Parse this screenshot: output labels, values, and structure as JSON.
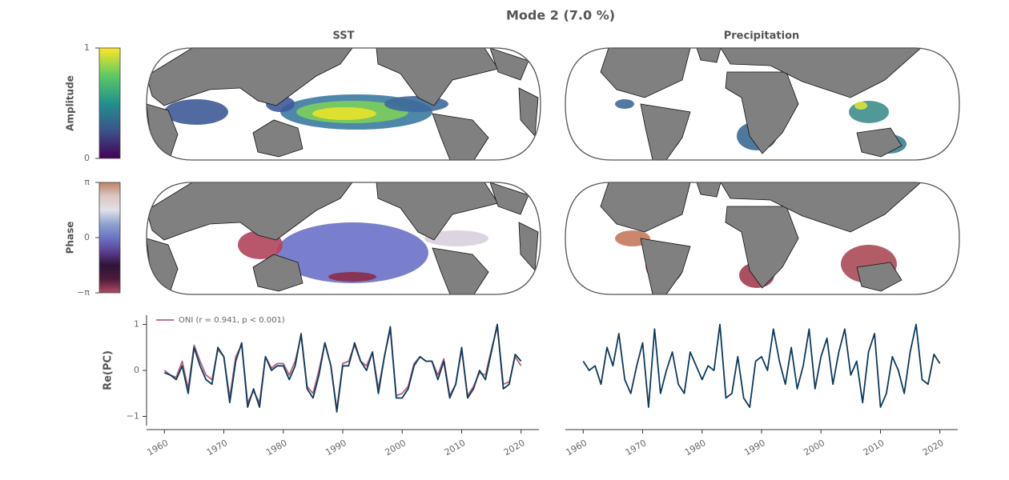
{
  "figure": {
    "title": "Mode 2 (7.0 %)",
    "column_titles": [
      "SST",
      "Precipitation"
    ]
  },
  "colorbars": [
    {
      "label": "Amplitude",
      "lim": [
        0,
        1
      ],
      "ticks": [
        0,
        1
      ],
      "colors": [
        "#440154",
        "#3b528b",
        "#21918c",
        "#5ec962",
        "#fde725"
      ]
    },
    {
      "label": "Phase",
      "lim": [
        -3.14159,
        3.14159
      ],
      "ticks": [
        {
          "value": -3.14159,
          "label": "−π"
        },
        0,
        {
          "value": 3.14159,
          "label": "π"
        }
      ],
      "colors": [
        "#b04a62",
        "#4c1b3a",
        "#2f1436",
        "#5b3f94",
        "#6a76c2",
        "#8fa3cf",
        "#e2e0e8",
        "#d9c8c3",
        "#c08267"
      ]
    }
  ],
  "chart_data": [
    {
      "type": "line",
      "ylabel": "Re(PC)",
      "x": [
        1960,
        1961,
        1962,
        1963,
        1964,
        1965,
        1966,
        1967,
        1968,
        1969,
        1970,
        1971,
        1972,
        1973,
        1974,
        1975,
        1976,
        1977,
        1978,
        1979,
        1980,
        1981,
        1982,
        1983,
        1984,
        1985,
        1986,
        1987,
        1988,
        1989,
        1990,
        1991,
        1992,
        1993,
        1994,
        1995,
        1996,
        1997,
        1998,
        1999,
        2000,
        2001,
        2002,
        2003,
        2004,
        2005,
        2006,
        2007,
        2008,
        2009,
        2010,
        2011,
        2012,
        2013,
        2014,
        2015,
        2016,
        2017,
        2018,
        2019,
        2020
      ],
      "series": [
        {
          "name": "ONI (r = 0.941, p < 0.001)",
          "color": "#b0627a",
          "values": [
            0.0,
            -0.1,
            -0.15,
            0.2,
            -0.4,
            0.55,
            0.2,
            -0.1,
            -0.2,
            0.45,
            0.3,
            -0.6,
            0.3,
            0.55,
            -0.7,
            -0.45,
            -0.7,
            0.3,
            0.05,
            0.15,
            0.15,
            -0.1,
            0.2,
            0.75,
            -0.35,
            -0.5,
            0.0,
            0.6,
            0.1,
            -0.85,
            0.15,
            0.2,
            0.55,
            0.2,
            0.1,
            0.4,
            -0.4,
            0.3,
            0.9,
            -0.55,
            -0.5,
            -0.35,
            0.15,
            0.3,
            0.2,
            0.2,
            -0.1,
            0.25,
            -0.55,
            -0.3,
            0.45,
            -0.55,
            -0.35,
            -0.05,
            -0.1,
            0.45,
            0.95,
            -0.3,
            -0.25,
            0.3,
            0.1
          ]
        },
        {
          "color": "#0d3b5e",
          "values": [
            -0.05,
            -0.1,
            -0.2,
            0.1,
            -0.5,
            0.5,
            0.1,
            -0.2,
            -0.3,
            0.5,
            0.3,
            -0.7,
            0.2,
            0.6,
            -0.8,
            -0.4,
            -0.8,
            0.3,
            0.0,
            0.1,
            0.1,
            -0.2,
            0.1,
            0.8,
            -0.4,
            -0.6,
            -0.1,
            0.6,
            0.1,
            -0.9,
            0.1,
            0.1,
            0.6,
            0.2,
            0.0,
            0.4,
            -0.5,
            0.3,
            0.95,
            -0.6,
            -0.6,
            -0.4,
            0.1,
            0.3,
            0.2,
            0.2,
            -0.2,
            0.2,
            -0.6,
            -0.3,
            0.5,
            -0.6,
            -0.4,
            0.0,
            -0.2,
            0.4,
            1.0,
            -0.4,
            -0.3,
            0.35,
            0.2
          ]
        }
      ],
      "xlim": [
        1957,
        2023
      ],
      "xticks": [
        1960,
        1970,
        1980,
        1990,
        2000,
        2010,
        2020
      ],
      "ylim": [
        -1.2,
        1.2
      ],
      "yticks": [
        {
          "value": -1,
          "label": "−1"
        },
        0,
        1
      ],
      "legend": "upper left"
    },
    {
      "type": "line",
      "x": [
        1960,
        1961,
        1962,
        1963,
        1964,
        1965,
        1966,
        1967,
        1968,
        1969,
        1970,
        1971,
        1972,
        1973,
        1974,
        1975,
        1976,
        1977,
        1978,
        1979,
        1980,
        1981,
        1982,
        1983,
        1984,
        1985,
        1986,
        1987,
        1988,
        1989,
        1990,
        1991,
        1992,
        1993,
        1994,
        1995,
        1996,
        1997,
        1998,
        1999,
        2000,
        2001,
        2002,
        2003,
        2004,
        2005,
        2006,
        2007,
        2008,
        2009,
        2010,
        2011,
        2012,
        2013,
        2014,
        2015,
        2016,
        2017,
        2018,
        2019,
        2020
      ],
      "series": [
        {
          "color": "#0d3b5e",
          "values": [
            0.2,
            0.0,
            0.1,
            -0.3,
            0.5,
            0.1,
            0.8,
            -0.2,
            -0.5,
            0.1,
            0.6,
            -0.8,
            0.9,
            -0.5,
            0.0,
            0.4,
            -0.3,
            -0.5,
            0.4,
            0.1,
            -0.2,
            0.1,
            0.0,
            1.0,
            -0.6,
            -0.5,
            0.3,
            -0.6,
            -0.8,
            0.2,
            0.3,
            0.0,
            0.9,
            0.2,
            -0.3,
            0.5,
            -0.4,
            0.1,
            0.9,
            -0.4,
            0.3,
            0.7,
            -0.3,
            0.4,
            0.9,
            -0.1,
            0.2,
            -0.7,
            0.4,
            0.8,
            -0.8,
            -0.5,
            0.3,
            0.0,
            -0.5,
            0.4,
            1.0,
            -0.2,
            -0.3,
            0.35,
            0.15
          ]
        }
      ],
      "xlim": [
        1957,
        2023
      ],
      "xticks": [
        1960,
        1970,
        1980,
        1990,
        2000,
        2010,
        2020
      ],
      "ylim": [
        -1.2,
        1.2
      ]
    }
  ]
}
